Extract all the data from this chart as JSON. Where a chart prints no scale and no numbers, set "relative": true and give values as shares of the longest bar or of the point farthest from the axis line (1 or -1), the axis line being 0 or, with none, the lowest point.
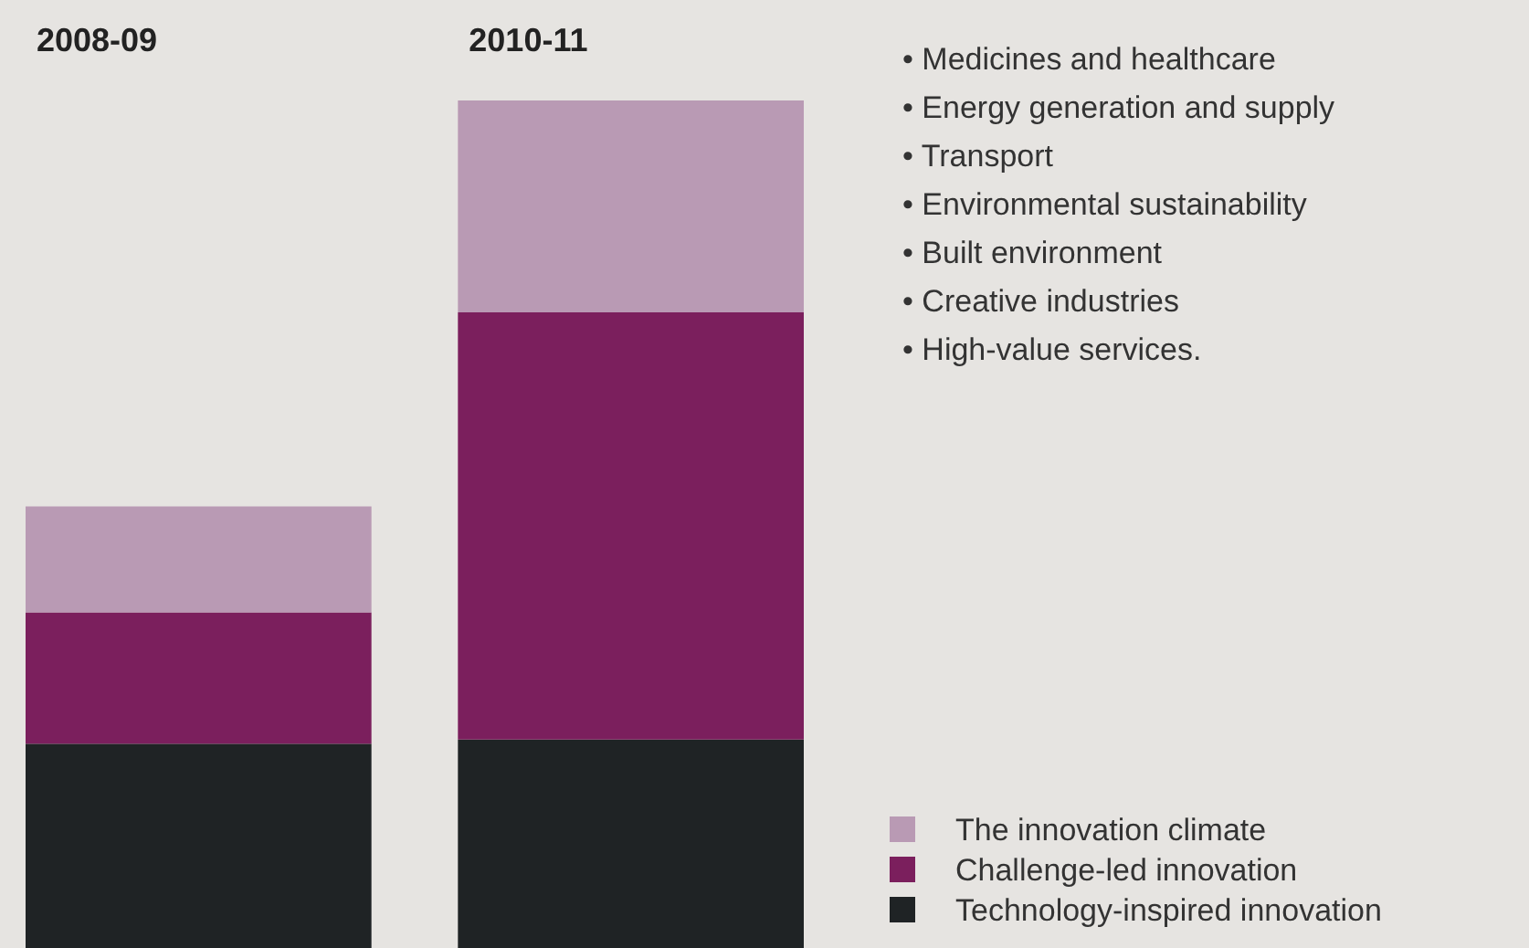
{
  "chart_data": {
    "type": "bar",
    "stacked": true,
    "relative": true,
    "categories": [
      "2008-09",
      "2010-11"
    ],
    "series": [
      {
        "name": "Technology-inspired innovation",
        "color": "#1f2325",
        "values": [
          0.241,
          0.246
        ]
      },
      {
        "name": "Challenge-led innovation",
        "color": "#7b1f5d",
        "values": [
          0.155,
          0.504
        ]
      },
      {
        "name": "The innovation climate",
        "color": "#b99ab4",
        "values": [
          0.125,
          0.25
        ]
      }
    ],
    "legend": "bottom right",
    "annotations": [
      "• Medicines and healthcare",
      "• Energy generation and supply",
      "• Transport",
      "• Environmental sustainability",
      "• Built environment",
      "• Creative industries",
      "• High-value services."
    ]
  }
}
